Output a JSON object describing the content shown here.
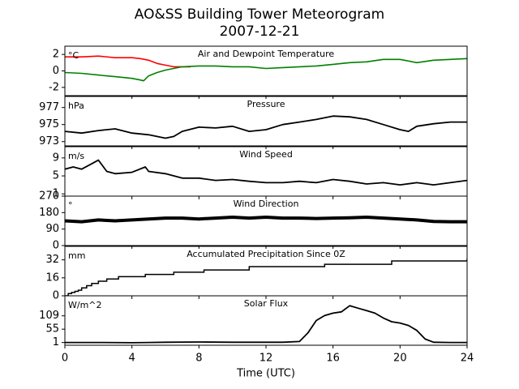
{
  "figure": {
    "title": "AO&SS Building Tower Meteorogram",
    "subtitle": "2007-12-21",
    "xlabel": "Time (UTC)"
  },
  "chart_data": [
    {
      "type": "line",
      "title": "Air and Dewpoint Temperature",
      "unit": "°C",
      "ylim": [
        -3,
        3
      ],
      "yticks": [
        2,
        0,
        -2
      ],
      "xlim": [
        0,
        24
      ],
      "series": [
        {
          "color": "#ff0000",
          "x": [
            0,
            1,
            2,
            3,
            4,
            4.5,
            5,
            5.5,
            6,
            6.5,
            7,
            7.5
          ],
          "values": [
            1.7,
            1.7,
            1.8,
            1.6,
            1.6,
            1.5,
            1.3,
            0.9,
            0.7,
            0.5,
            0.5,
            0.5
          ]
        },
        {
          "color": "#008000",
          "x": [
            0,
            1,
            2,
            3,
            4,
            4.5,
            4.7,
            5,
            5.5,
            6,
            7,
            8,
            9,
            10,
            11,
            12,
            13,
            14,
            15,
            16,
            17,
            18,
            19,
            20,
            21,
            22,
            23,
            24
          ],
          "values": [
            -0.2,
            -0.3,
            -0.5,
            -0.7,
            -0.9,
            -1.1,
            -1.2,
            -0.6,
            -0.2,
            0.1,
            0.5,
            0.6,
            0.6,
            0.5,
            0.5,
            0.3,
            0.4,
            0.5,
            0.6,
            0.8,
            1.0,
            1.1,
            1.4,
            1.4,
            1.0,
            1.3,
            1.4,
            1.5
          ]
        }
      ]
    },
    {
      "type": "line",
      "title": "Pressure",
      "unit": "hPa",
      "ylim": [
        972.5,
        978.3
      ],
      "yticks": [
        977,
        975,
        973
      ],
      "xlim": [
        0,
        24
      ],
      "series": [
        {
          "color": "#000000",
          "x": [
            0,
            1,
            2,
            3,
            4,
            5,
            6,
            6.5,
            7,
            8,
            9,
            10,
            11,
            12,
            13,
            14,
            15,
            16,
            17,
            18,
            19,
            20,
            20.5,
            21,
            22,
            23,
            24
          ],
          "values": [
            974.2,
            974.0,
            974.3,
            974.5,
            974.0,
            973.8,
            973.4,
            973.6,
            974.2,
            974.7,
            974.6,
            974.8,
            974.2,
            974.4,
            975.0,
            975.3,
            975.6,
            976.0,
            975.9,
            975.6,
            975.0,
            974.4,
            974.2,
            974.8,
            975.1,
            975.3,
            975.3
          ]
        }
      ]
    },
    {
      "type": "line",
      "title": "Wind Speed",
      "unit": "m/s",
      "ylim": [
        0.5,
        11.5
      ],
      "yticks": [
        9,
        5,
        1
      ],
      "xlim": [
        0,
        24
      ],
      "series": [
        {
          "color": "#000000",
          "x": [
            0,
            0.5,
            1,
            1.5,
            2,
            2.5,
            3,
            4,
            4.8,
            5,
            6,
            7,
            8,
            9,
            10,
            11,
            12,
            13,
            14,
            15,
            16,
            17,
            18,
            19,
            20,
            21,
            22,
            23,
            24
          ],
          "values": [
            6.5,
            7,
            6.5,
            7.5,
            8.5,
            6,
            5.5,
            5.8,
            7,
            6,
            5.5,
            4.5,
            4.5,
            4,
            4.2,
            3.8,
            3.5,
            3.5,
            3.8,
            3.5,
            4.2,
            3.8,
            3.2,
            3.5,
            3,
            3.5,
            3,
            3.5,
            4
          ]
        }
      ]
    },
    {
      "type": "line",
      "title": "Wind Direction",
      "unit": "°",
      "ylim": [
        0,
        270
      ],
      "yticks": [
        270,
        180,
        90,
        0
      ],
      "xlim": [
        0,
        24
      ],
      "series": [
        {
          "color": "#000000",
          "x": [
            0,
            1,
            2,
            3,
            4,
            5,
            6,
            7,
            8,
            9,
            10,
            11,
            12,
            13,
            14,
            15,
            16,
            17,
            18,
            19,
            20,
            21,
            22,
            23,
            24
          ],
          "values": [
            135,
            130,
            140,
            135,
            140,
            145,
            150,
            150,
            145,
            150,
            155,
            150,
            155,
            150,
            150,
            148,
            150,
            152,
            155,
            150,
            145,
            140,
            132,
            130,
            130
          ]
        }
      ]
    },
    {
      "type": "line",
      "title": "Accumulated Precipitation Since 0Z",
      "unit": "mm",
      "ylim": [
        0,
        44
      ],
      "yticks": [
        32,
        16,
        0
      ],
      "xlim": [
        0,
        24
      ],
      "series": [
        {
          "color": "#000000",
          "x": [
            0,
            0.2,
            0.4,
            0.6,
            0.8,
            1,
            1.3,
            1.6,
            2,
            2.5,
            3.2,
            4.8,
            6.5,
            8.3,
            11,
            15.5,
            19.5,
            24
          ],
          "values": [
            0,
            2,
            3,
            4,
            5,
            7,
            9,
            11,
            13,
            15,
            17,
            19,
            21,
            23,
            26,
            28,
            31,
            33
          ]
        }
      ]
    },
    {
      "type": "line",
      "title": "Solar Flux",
      "unit": "W/m^2",
      "ylim": [
        -10,
        190
      ],
      "yticks": [
        109,
        55,
        1
      ],
      "xlim": [
        0,
        24
      ],
      "series": [
        {
          "color": "#000000",
          "x": [
            0,
            2,
            4,
            5,
            6,
            8,
            10,
            12,
            13,
            14,
            14.5,
            15,
            15.5,
            16,
            16.5,
            17,
            17.5,
            18,
            18.5,
            19,
            19.5,
            20,
            20.5,
            21,
            21.5,
            22,
            23,
            24
          ],
          "values": [
            1,
            1,
            0,
            1,
            2,
            3,
            2,
            2,
            2,
            5,
            40,
            90,
            110,
            120,
            125,
            150,
            140,
            130,
            120,
            100,
            85,
            80,
            70,
            50,
            15,
            2,
            1,
            1
          ]
        }
      ]
    }
  ],
  "x_axis": {
    "ticks": [
      0,
      4,
      8,
      12,
      16,
      20,
      24
    ]
  }
}
